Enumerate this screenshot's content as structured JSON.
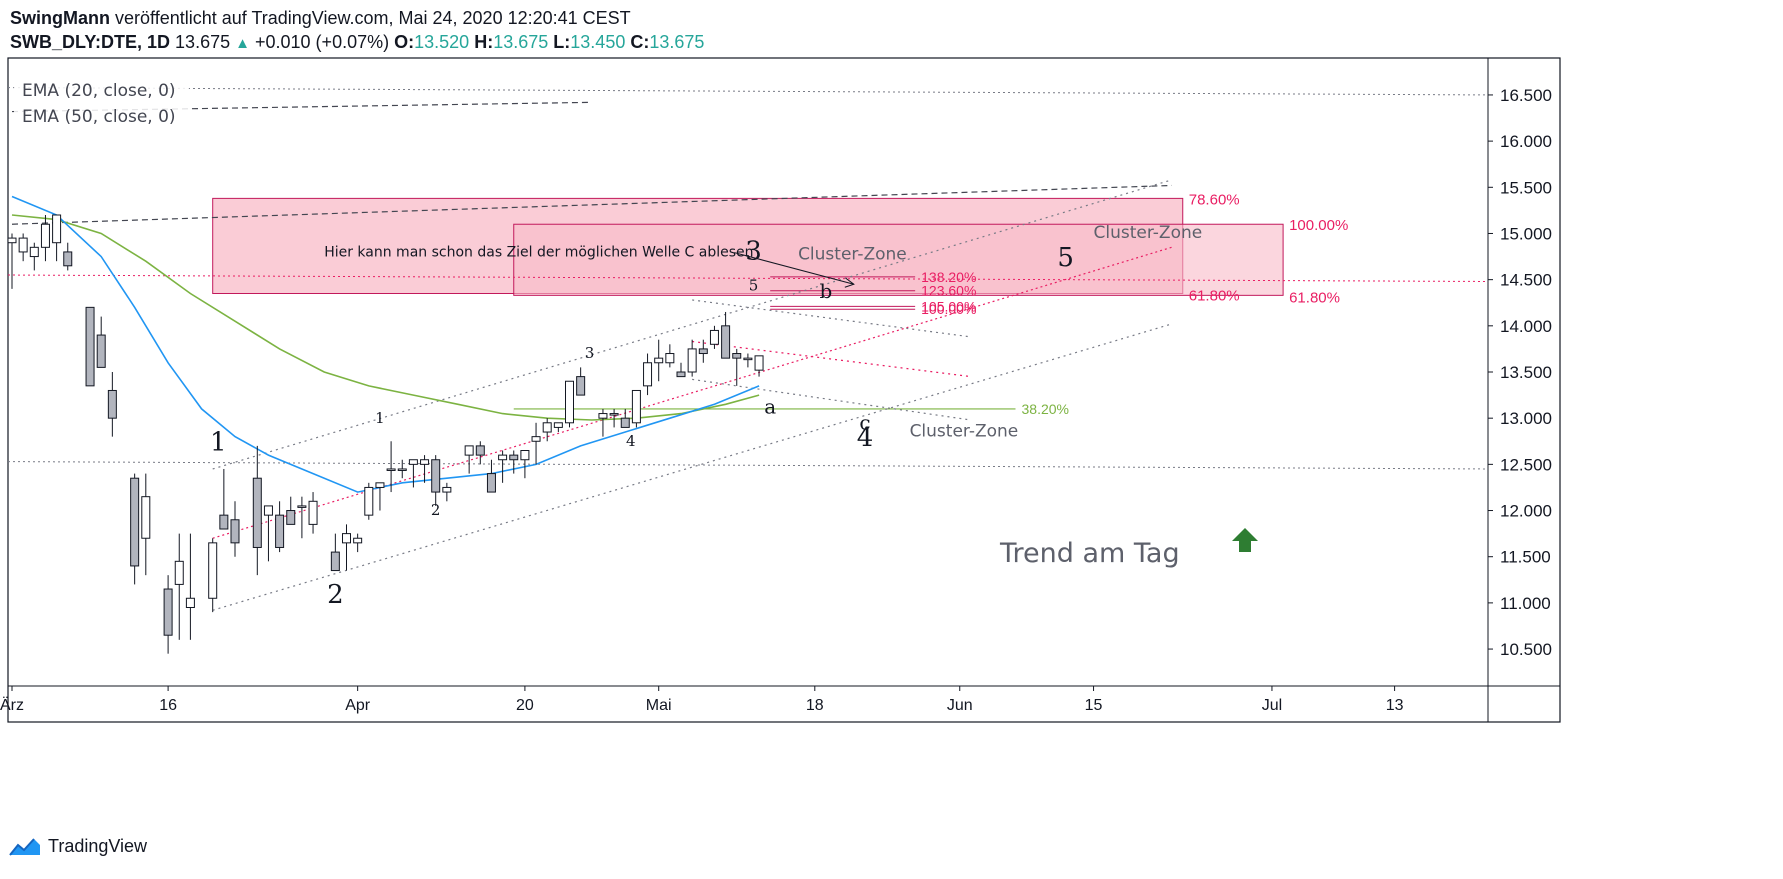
{
  "header": {
    "author": "SwingMann",
    "published_text": "veröffentlicht auf TradingView.com, Mai 24, 2020 12:20:41 CEST",
    "symbol": "SWB_DLY:DTE, 1D",
    "last": "13.675",
    "change": "+0.010 (+0.07%)",
    "o_label": "O:",
    "o_value": "13.520",
    "h_label": "H:",
    "h_value": "13.675",
    "l_label": "L:",
    "l_value": "13.450",
    "c_label": "C:",
    "c_value": "13.675"
  },
  "indicators": [
    "EMA (20, close, 0)",
    "EMA (50, close, 0)"
  ],
  "footer": {
    "brand": "TradingView"
  },
  "colors": {
    "up_text": "#26a69a",
    "bear_candle": "#b2b5be",
    "ema20": "#2196f3",
    "ema50": "#7cb342",
    "zone": "#f8bbc8",
    "zone_line": "#c2185b",
    "fib_pink": "#e91e63",
    "fib_green": "#7cb342"
  },
  "chart_data": {
    "type": "candlestick",
    "ylim": [
      10.1,
      16.9
    ],
    "y_ticks": [
      10.5,
      11,
      11.5,
      12,
      12.5,
      13,
      13.5,
      14,
      14.5,
      15,
      15.5,
      16,
      16.5
    ],
    "y_tick_labels": [
      "10.500",
      "11.000",
      "11.500",
      "12.000",
      "12.500",
      "13.000",
      "13.500",
      "14.000",
      "14.500",
      "15.000",
      "15.500",
      "16.000",
      "16.500"
    ],
    "x_tick_labels": [
      "Ärz",
      "16",
      "Apr",
      "20",
      "Mai",
      "18",
      "Jun",
      "15",
      "Jul",
      "13"
    ],
    "x_tick_index": [
      0,
      14,
      31,
      46,
      58,
      72,
      85,
      97,
      113,
      124
    ],
    "candles": [
      [
        0,
        14.9,
        15.0,
        14.4,
        14.95
      ],
      [
        1,
        14.8,
        15.0,
        14.7,
        14.95
      ],
      [
        2,
        14.75,
        14.9,
        14.6,
        14.85
      ],
      [
        3,
        14.85,
        15.2,
        14.7,
        15.1
      ],
      [
        4,
        14.9,
        15.2,
        14.7,
        15.2
      ],
      [
        5,
        14.8,
        14.9,
        14.6,
        14.65
      ],
      [
        7,
        14.2,
        14.2,
        13.35,
        13.35
      ],
      [
        8,
        13.9,
        14.1,
        13.6,
        13.55
      ],
      [
        9,
        13.3,
        13.5,
        12.8,
        13.0
      ],
      [
        11,
        12.35,
        12.4,
        11.2,
        11.4
      ],
      [
        12,
        11.7,
        12.4,
        11.3,
        12.15
      ],
      [
        14,
        11.15,
        11.3,
        10.45,
        10.65
      ],
      [
        15,
        11.2,
        11.75,
        10.6,
        11.45
      ],
      [
        16,
        10.95,
        11.75,
        10.6,
        11.05
      ],
      [
        18,
        11.05,
        11.7,
        10.9,
        11.65
      ],
      [
        19,
        11.95,
        12.45,
        11.8,
        11.8
      ],
      [
        20,
        11.9,
        12.1,
        11.5,
        11.65
      ],
      [
        22,
        12.35,
        12.7,
        11.3,
        11.6
      ],
      [
        23,
        11.95,
        12.0,
        11.45,
        12.05
      ],
      [
        24,
        11.95,
        12.1,
        11.55,
        11.6
      ],
      [
        25,
        12.0,
        12.15,
        11.85,
        11.85
      ],
      [
        26,
        12.05,
        12.15,
        11.7,
        12.05
      ],
      [
        27,
        11.85,
        12.2,
        11.75,
        12.1
      ],
      [
        29,
        11.55,
        11.75,
        11.4,
        11.35
      ],
      [
        30,
        11.65,
        11.85,
        11.35,
        11.75
      ],
      [
        31,
        11.65,
        11.75,
        11.55,
        11.7
      ],
      [
        32,
        11.95,
        12.3,
        11.9,
        12.25
      ],
      [
        33,
        12.25,
        12.3,
        12.0,
        12.3
      ],
      [
        34,
        12.45,
        12.75,
        12.2,
        12.45
      ],
      [
        35,
        12.45,
        12.55,
        12.35,
        12.45
      ],
      [
        36,
        12.5,
        12.55,
        12.25,
        12.55
      ],
      [
        37,
        12.5,
        12.6,
        12.3,
        12.55
      ],
      [
        38,
        12.55,
        12.6,
        12.05,
        12.2
      ],
      [
        39,
        12.2,
        12.3,
        12.1,
        12.25
      ],
      [
        41,
        12.6,
        12.7,
        12.4,
        12.7
      ],
      [
        42,
        12.7,
        12.75,
        12.5,
        12.6
      ],
      [
        43,
        12.4,
        12.55,
        12.2,
        12.2
      ],
      [
        44,
        12.55,
        12.65,
        12.3,
        12.6
      ],
      [
        45,
        12.6,
        12.65,
        12.4,
        12.55
      ],
      [
        46,
        12.55,
        12.65,
        12.35,
        12.65
      ],
      [
        47,
        12.75,
        12.95,
        12.5,
        12.8
      ],
      [
        48,
        12.85,
        13.0,
        12.75,
        12.95
      ],
      [
        49,
        12.9,
        12.95,
        12.85,
        12.95
      ],
      [
        50,
        12.95,
        13.4,
        12.9,
        13.4
      ],
      [
        51,
        13.45,
        13.55,
        13.25,
        13.25
      ],
      [
        53,
        13.0,
        13.1,
        12.8,
        13.05
      ],
      [
        54,
        13.05,
        13.1,
        12.9,
        13.05
      ],
      [
        55,
        13.0,
        13.1,
        12.9,
        12.9
      ],
      [
        56,
        12.95,
        13.3,
        12.9,
        13.3
      ],
      [
        57,
        13.35,
        13.7,
        13.25,
        13.6
      ],
      [
        58,
        13.6,
        13.85,
        13.4,
        13.65
      ],
      [
        59,
        13.6,
        13.8,
        13.55,
        13.7
      ],
      [
        60,
        13.5,
        13.6,
        13.45,
        13.45
      ],
      [
        61,
        13.5,
        13.85,
        13.45,
        13.75
      ],
      [
        62,
        13.75,
        13.85,
        13.6,
        13.7
      ],
      [
        63,
        13.8,
        14.0,
        13.75,
        13.95
      ],
      [
        64,
        14.0,
        14.15,
        13.7,
        13.65
      ],
      [
        65,
        13.7,
        13.75,
        13.35,
        13.65
      ],
      [
        66,
        13.65,
        13.7,
        13.55,
        13.65
      ],
      [
        67,
        13.52,
        13.675,
        13.45,
        13.675
      ]
    ],
    "ema20": [
      [
        0,
        15.4
      ],
      [
        4,
        15.2
      ],
      [
        8,
        14.75
      ],
      [
        11,
        14.2
      ],
      [
        14,
        13.6
      ],
      [
        17,
        13.1
      ],
      [
        20,
        12.8
      ],
      [
        23,
        12.6
      ],
      [
        27,
        12.4
      ],
      [
        31,
        12.2
      ],
      [
        35,
        12.3
      ],
      [
        39,
        12.35
      ],
      [
        43,
        12.4
      ],
      [
        47,
        12.5
      ],
      [
        51,
        12.7
      ],
      [
        55,
        12.85
      ],
      [
        59,
        13.0
      ],
      [
        63,
        13.15
      ],
      [
        67,
        13.35
      ]
    ],
    "ema50": [
      [
        0,
        15.2
      ],
      [
        4,
        15.15
      ],
      [
        8,
        15.0
      ],
      [
        12,
        14.7
      ],
      [
        16,
        14.35
      ],
      [
        20,
        14.05
      ],
      [
        24,
        13.75
      ],
      [
        28,
        13.5
      ],
      [
        32,
        13.35
      ],
      [
        36,
        13.25
      ],
      [
        40,
        13.15
      ],
      [
        44,
        13.05
      ],
      [
        48,
        13.0
      ],
      [
        52,
        12.98
      ],
      [
        56,
        13.0
      ],
      [
        60,
        13.05
      ],
      [
        64,
        13.15
      ],
      [
        67,
        13.25
      ]
    ],
    "zones": [
      {
        "x0": 18,
        "x1": 105,
        "y_low": 14.35,
        "y_high": 15.38,
        "label": "78.60%",
        "label_color": "#e91e63"
      },
      {
        "x0": 45,
        "x1": 114,
        "y_low": 14.33,
        "y_high": 15.1,
        "label": "100.00%",
        "label_color": "#e91e63"
      }
    ],
    "fib_lines": [
      {
        "x0": 68,
        "x1": 81,
        "y": 14.53,
        "label": "138.20%"
      },
      {
        "x0": 68,
        "x1": 81,
        "y": 14.38,
        "label": "123.60%"
      },
      {
        "x0": 68,
        "x1": 81,
        "y": 14.21,
        "label": "105.00%"
      },
      {
        "x0": 68,
        "x1": 81,
        "y": 14.18,
        "label": "100.00%"
      }
    ],
    "zone_bottom_labels": [
      "61.80%",
      "61.80%"
    ],
    "green_fib": {
      "x0": 45,
      "x1": 90,
      "y": 13.1,
      "label": "38.20%"
    },
    "channel_upper": [
      [
        18,
        12.45
      ],
      [
        104,
        15.58
      ]
    ],
    "channel_lower": [
      [
        18,
        10.92
      ],
      [
        104,
        14.02
      ]
    ],
    "pink_trend": [
      [
        18,
        11.7
      ],
      [
        104,
        14.85
      ]
    ],
    "dashed_line": [
      [
        0,
        15.1
      ],
      [
        104,
        15.52
      ]
    ],
    "ema_dashed_line": [
      [
        0,
        16.32
      ],
      [
        52,
        16.42
      ]
    ],
    "horizontal_dotted": [
      {
        "y0": 16.58,
        "y1": 16.5
      },
      {
        "y0": 14.55,
        "y1": 14.48
      },
      {
        "y0": 12.53,
        "y1": 12.45
      }
    ],
    "converge_lines": [
      [
        [
          61,
          14.28
        ],
        [
          86,
          13.88
        ]
      ],
      [
        [
          61,
          13.83
        ],
        [
          86,
          13.45
        ]
      ],
      [
        [
          61,
          13.42
        ],
        [
          86,
          12.98
        ]
      ]
    ],
    "wave_labels": [
      {
        "text": "1",
        "x": 18.5,
        "y": 12.65,
        "size": 26
      },
      {
        "text": "2",
        "x": 29,
        "y": 11.0,
        "size": 26
      },
      {
        "text": "3",
        "x": 66.5,
        "y": 14.72,
        "size": 26
      },
      {
        "text": "4",
        "x": 76.5,
        "y": 12.7,
        "size": 26
      },
      {
        "text": "5",
        "x": 94.5,
        "y": 14.65,
        "size": 26
      },
      {
        "text": "1",
        "x": 33,
        "y": 12.95,
        "size": 15
      },
      {
        "text": "2",
        "x": 38,
        "y": 11.95,
        "size": 15
      },
      {
        "text": "3",
        "x": 51.8,
        "y": 13.65,
        "size": 15
      },
      {
        "text": "4",
        "x": 55.5,
        "y": 12.7,
        "size": 15
      },
      {
        "text": "5",
        "x": 66.5,
        "y": 14.38,
        "size": 15
      },
      {
        "text": "a",
        "x": 68,
        "y": 13.05,
        "size": 20
      },
      {
        "text": "b",
        "x": 73,
        "y": 14.3,
        "size": 20
      },
      {
        "text": "c",
        "x": 76.5,
        "y": 12.88,
        "size": 20
      }
    ],
    "annotations": [
      {
        "text": "Hier kann man schon das Ziel der möglichen Welle C ablesen",
        "x": 28,
        "y": 14.75
      },
      {
        "text": "Cluster-Zone",
        "x": 70.5,
        "y": 14.72
      },
      {
        "text": "Cluster-Zone",
        "x": 97,
        "y": 14.95
      },
      {
        "text": "Cluster-Zone",
        "x": 80.5,
        "y": 12.8
      }
    ],
    "trend_text": "Trend am Tag"
  }
}
